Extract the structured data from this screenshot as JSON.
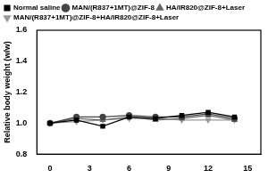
{
  "chart_data": {
    "type": "line",
    "y_label": "Relative body weight (w/w)",
    "x": [
      0,
      2,
      4,
      6,
      8,
      10,
      12,
      14
    ],
    "series": [
      {
        "name": "Normal saline",
        "color": "#000000",
        "marker": "square",
        "values": [
          1.0,
          1.02,
          0.98,
          1.04,
          1.03,
          1.05,
          1.07,
          1.04
        ]
      },
      {
        "name": "MAN/(R837+1MT)@ZIF-8",
        "color": "#444444",
        "marker": "circle",
        "values": [
          1.0,
          1.04,
          1.04,
          1.05,
          1.04,
          1.04,
          1.06,
          1.03
        ]
      },
      {
        "name": "HA/IR820@ZIF-8+Laser",
        "color": "#666666",
        "marker": "triangle",
        "values": [
          1.0,
          1.03,
          1.02,
          1.04,
          1.02,
          1.03,
          1.05,
          1.02
        ]
      },
      {
        "name": "MAN/(R837+1MT)@ZIF-8+HA/IR820@ZIF-8+Laser",
        "color": "#999999",
        "marker": "triangle-down",
        "values": [
          1.0,
          1.01,
          1.02,
          1.03,
          1.03,
          1.02,
          1.02,
          1.02
        ]
      }
    ],
    "xlim": [
      -1,
      16
    ],
    "xticks": [
      0,
      3,
      6,
      9,
      12,
      15
    ],
    "ylim": [
      0.8,
      1.6
    ],
    "yticks": [
      {
        "value": 0.8,
        "label": "0.8"
      },
      {
        "value": 1.0,
        "label": "1.0"
      },
      {
        "value": 1.2,
        "label": "1.2"
      },
      {
        "value": 1.4,
        "label": "1.4"
      },
      {
        "value": 1.6,
        "label": "1.6"
      }
    ],
    "legend": "top",
    "grid": false
  }
}
